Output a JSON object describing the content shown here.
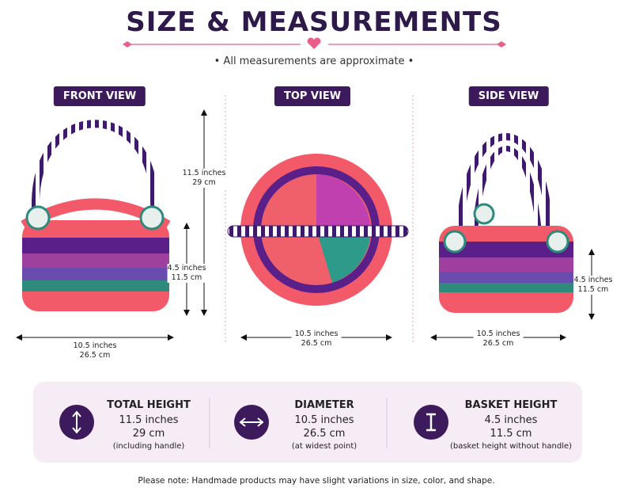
{
  "header": {
    "title": "SIZE & MEASUREMENTS",
    "subtitle": "• All measurements are approximate •"
  },
  "views": [
    {
      "label": "FRONT VIEW",
      "dimensions": [
        {
          "line1": "11.5 inches",
          "line2": "29 cm"
        },
        {
          "line1": "4.5 inches",
          "line2": "11.5 cm"
        },
        {
          "line1": "10.5 inches",
          "line2": "26.5 cm"
        }
      ]
    },
    {
      "label": "TOP VIEW",
      "dimensions": [
        {
          "line1": "10.5 inches",
          "line2": "26.5 cm"
        }
      ]
    },
    {
      "label": "SIDE VIEW",
      "dimensions": [
        {
          "line1": "4.5 inches",
          "line2": "11.5 cm"
        },
        {
          "line1": "10.5 inches",
          "line2": "26.5 cm"
        }
      ]
    }
  ],
  "cards": [
    {
      "title": "TOTAL HEIGHT",
      "lines": [
        "11.5 inches",
        "29 cm"
      ],
      "note": "(including handle)"
    },
    {
      "title": "DIAMETER",
      "lines": [
        "10.5 inches",
        "26.5 cm"
      ],
      "note": "(at widest point)"
    },
    {
      "title": "BASKET HEIGHT",
      "lines": [
        "4.5 inches",
        "11.5 cm"
      ],
      "note": "(basket height without handle)"
    }
  ],
  "footer": {
    "note": "Please note: Handmade products may have slight variations in size, color, and shape."
  }
}
